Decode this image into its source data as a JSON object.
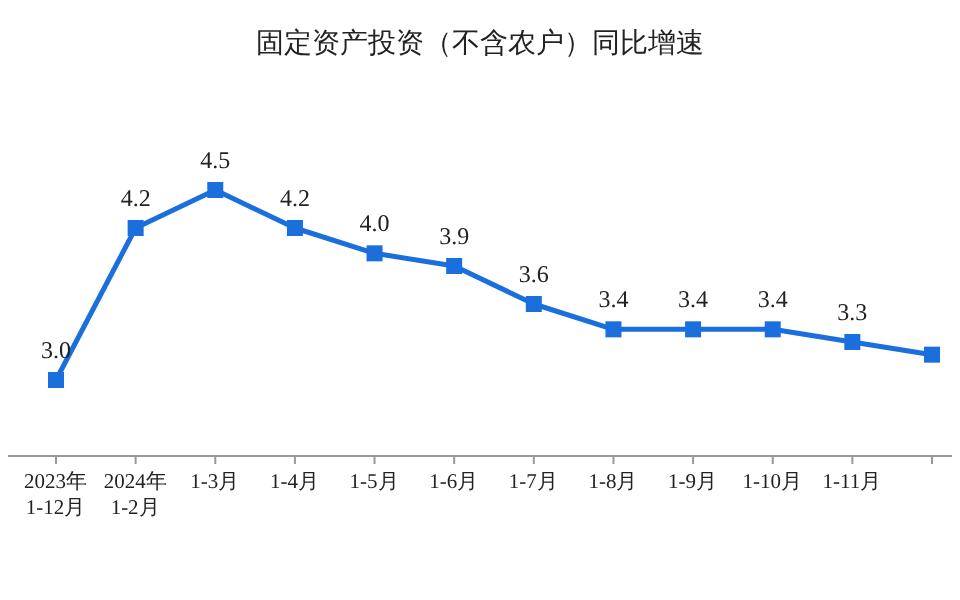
{
  "chart_data": {
    "type": "line",
    "title": "固定资产投资（不含农户）同比增速",
    "categories": [
      "2023年\n1-12月",
      "2024年\n1-2月",
      "1-3月",
      "1-4月",
      "1-5月",
      "1-6月",
      "1-7月",
      "1-8月",
      "1-9月",
      "1-10月",
      "1-11月",
      null
    ],
    "series": [
      {
        "color": "#1a6fdc",
        "values": [
          3.0,
          4.2,
          4.5,
          4.2,
          4.0,
          3.9,
          3.6,
          3.4,
          3.4,
          3.4,
          3.3,
          3.2
        ],
        "value_labels": [
          "3.0",
          "4.2",
          "4.5",
          "4.2",
          "4.0",
          "3.9",
          "3.6",
          "3.4",
          "3.4",
          "3.4",
          "3.3",
          null
        ]
      }
    ],
    "marker": "square",
    "line_style": "solid"
  }
}
